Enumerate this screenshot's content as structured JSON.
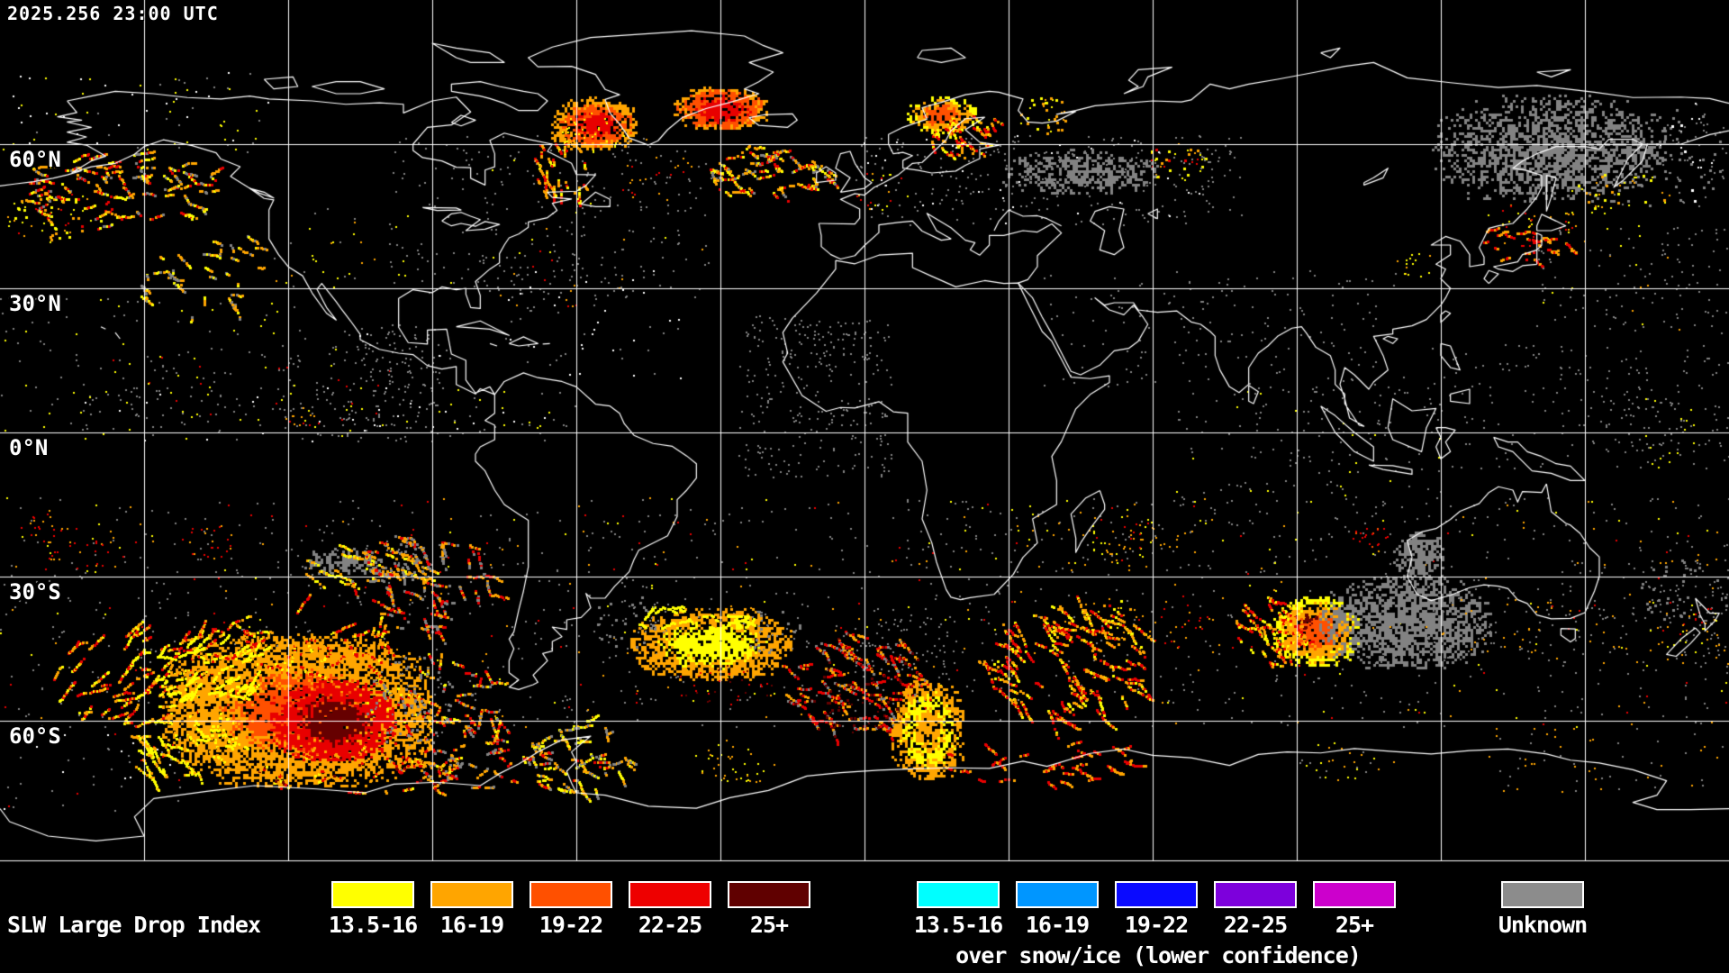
{
  "header": {
    "timestamp": "2025.256 23:00 UTC"
  },
  "map": {
    "lat_labels": [
      {
        "text": "60°N"
      },
      {
        "text": "30°N"
      },
      {
        "text": "0°N"
      },
      {
        "text": "30°S"
      },
      {
        "text": "60°S"
      }
    ],
    "background": "#000000",
    "grid_color": "#FFFFFF",
    "coast_color": "#FFFFFF",
    "data_colors": {
      "yellow": "#FFFF00",
      "orange": "#FFA500",
      "dark_orange": "#FF5000",
      "red": "#E80000",
      "dark_red": "#660000",
      "gray": "#828282",
      "white": "#FFFFFF"
    }
  },
  "legend": {
    "slw": {
      "title": "SLW Large Drop Index",
      "bins": [
        {
          "label": "13.5-16",
          "color": "#FFFF00"
        },
        {
          "label": "16-19",
          "color": "#FFA500"
        },
        {
          "label": "19-22",
          "color": "#FF5000"
        },
        {
          "label": "22-25",
          "color": "#EE0000"
        },
        {
          "label": "25+",
          "color": "#600000"
        }
      ]
    },
    "snow_ice": {
      "caption": "over snow/ice (lower confidence)",
      "bins": [
        {
          "label": "13.5-16",
          "color": "#00FFFF"
        },
        {
          "label": "16-19",
          "color": "#0096FF"
        },
        {
          "label": "19-22",
          "color": "#0A0AFF"
        },
        {
          "label": "22-25",
          "color": "#7D00DC"
        },
        {
          "label": "25+",
          "color": "#CC00CC"
        }
      ]
    },
    "unknown": {
      "label": "Unknown",
      "color": "#8C8C8C"
    }
  }
}
